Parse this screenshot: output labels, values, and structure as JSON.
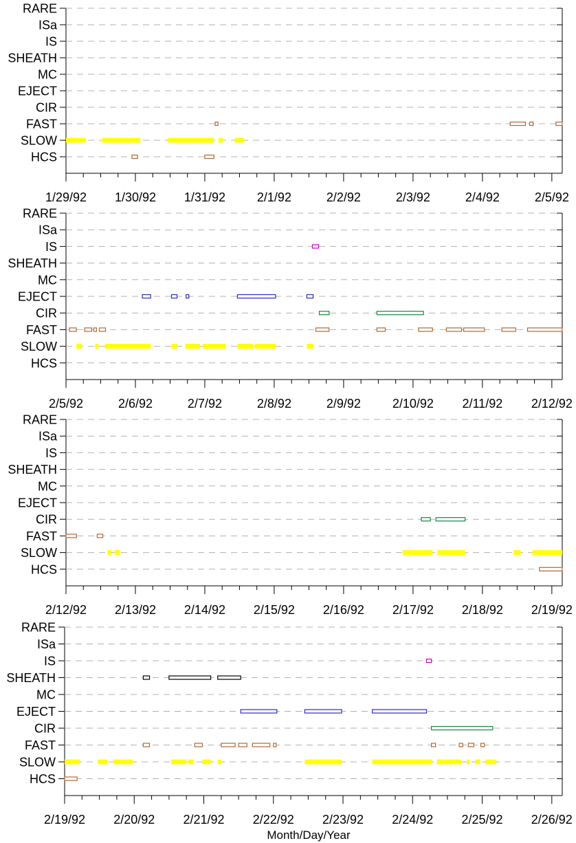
{
  "chart_data": {
    "type": "scatter",
    "xlabel": "Month/Day/Year",
    "categories": [
      "RARE",
      "ISa",
      "IS",
      "SHEATH",
      "MC",
      "EJECT",
      "CIR",
      "FAST",
      "SLOW",
      "HCS"
    ],
    "colors": {
      "SLOW": "#ffff00",
      "FAST": "#b4662e",
      "HCS": "#b4662e",
      "CIR": "#0f8a3c",
      "EJECT": "#2a2ac8",
      "IS": "#c800c8",
      "SHEATH": "#000000",
      "grid": "#b0b0b0"
    },
    "grid": true,
    "panels": [
      {
        "tick_labels": [
          "1/29/92",
          "1/30/92",
          "1/31/92",
          "2/1/92",
          "2/2/92",
          "2/3/92",
          "2/4/92",
          "2/5/92"
        ],
        "xlim_days": [
          0,
          7.15
        ],
        "series": {
          "SLOW": [
            [
              0,
              0.28
            ],
            [
              0.52,
              1.07
            ],
            [
              1.47,
              2.13
            ],
            [
              2.2,
              2.26
            ],
            [
              2.43,
              2.57
            ]
          ],
          "FAST": [
            [
              2.15,
              2.19
            ],
            [
              6.4,
              6.62
            ],
            [
              6.68,
              6.73
            ],
            [
              7.06,
              7.15
            ]
          ],
          "HCS": [
            [
              0.95,
              1.03
            ],
            [
              2.0,
              2.13
            ]
          ]
        }
      },
      {
        "tick_labels": [
          "2/5/92",
          "2/6/92",
          "2/7/92",
          "2/8/92",
          "2/9/92",
          "2/10/92",
          "2/11/92",
          "2/12/92"
        ],
        "xlim_days": [
          0,
          7.15
        ],
        "series": {
          "IS": [
            [
              3.55,
              3.64
            ]
          ],
          "EJECT": [
            [
              1.1,
              1.22
            ],
            [
              1.52,
              1.6
            ],
            [
              1.73,
              1.77
            ],
            [
              2.47,
              3.02
            ],
            [
              3.47,
              3.56
            ]
          ],
          "CIR": [
            [
              3.65,
              3.79
            ],
            [
              4.48,
              5.15
            ]
          ],
          "FAST": [
            [
              0.05,
              0.15
            ],
            [
              0.27,
              0.37
            ],
            [
              0.4,
              0.44
            ],
            [
              0.48,
              0.57
            ],
            [
              3.6,
              3.79
            ],
            [
              4.48,
              4.6
            ],
            [
              5.08,
              5.28
            ],
            [
              5.48,
              5.7
            ],
            [
              5.73,
              6.03
            ],
            [
              6.28,
              6.48
            ],
            [
              6.65,
              7.15
            ]
          ],
          "SLOW": [
            [
              0.15,
              0.23
            ],
            [
              0.42,
              0.47
            ],
            [
              0.56,
              1.22
            ],
            [
              1.52,
              1.6
            ],
            [
              1.72,
              1.93
            ],
            [
              1.97,
              2.3
            ],
            [
              2.47,
              2.7
            ],
            [
              2.72,
              3.02
            ],
            [
              3.47,
              3.56
            ]
          ]
        }
      },
      {
        "tick_labels": [
          "2/12/92",
          "2/13/92",
          "2/14/92",
          "2/15/92",
          "2/16/92",
          "2/17/92",
          "2/18/92",
          "2/19/92"
        ],
        "xlim_days": [
          0,
          7.15
        ],
        "series": {
          "CIR": [
            [
              5.12,
              5.25
            ],
            [
              5.33,
              5.75
            ]
          ],
          "FAST": [
            [
              0.0,
              0.15
            ],
            [
              0.45,
              0.53
            ]
          ],
          "SLOW": [
            [
              0.6,
              0.65
            ],
            [
              0.7,
              0.78
            ],
            [
              4.85,
              5.28
            ],
            [
              5.35,
              5.75
            ],
            [
              6.45,
              6.55
            ],
            [
              6.72,
              7.15
            ]
          ],
          "HCS": [
            [
              6.82,
              7.15
            ]
          ]
        }
      },
      {
        "tick_labels": [
          "2/19/92",
          "2/20/92",
          "2/21/92",
          "2/22/92",
          "2/23/92",
          "2/24/92",
          "2/25/92",
          "2/26/92"
        ],
        "xlim_days": [
          0,
          7.15
        ],
        "series": {
          "IS": [
            [
              5.2,
              5.27
            ]
          ],
          "SHEATH": [
            [
              1.13,
              1.22
            ],
            [
              1.5,
              2.1
            ],
            [
              2.2,
              2.53
            ]
          ],
          "EJECT": [
            [
              2.53,
              3.05
            ],
            [
              3.45,
              3.98
            ],
            [
              4.42,
              5.2
            ]
          ],
          "CIR": [
            [
              5.27,
              6.15
            ]
          ],
          "FAST": [
            [
              1.13,
              1.22
            ],
            [
              1.87,
              1.98
            ],
            [
              2.25,
              2.45
            ],
            [
              2.5,
              2.62
            ],
            [
              2.7,
              2.95
            ],
            [
              3.0,
              3.03
            ],
            [
              5.27,
              5.33
            ],
            [
              5.67,
              5.72
            ],
            [
              5.8,
              5.88
            ],
            [
              5.98,
              6.03
            ]
          ],
          "SLOW": [
            [
              0.0,
              0.22
            ],
            [
              0.48,
              0.62
            ],
            [
              0.7,
              0.98
            ],
            [
              1.53,
              1.75
            ],
            [
              1.78,
              1.85
            ],
            [
              1.98,
              2.1
            ],
            [
              2.2,
              2.25
            ],
            [
              3.45,
              3.98
            ],
            [
              4.42,
              5.28
            ],
            [
              5.35,
              5.7
            ],
            [
              5.78,
              5.82
            ],
            [
              5.9,
              5.97
            ],
            [
              6.05,
              6.2
            ]
          ],
          "HCS": [
            [
              0.0,
              0.18
            ]
          ]
        }
      }
    ]
  }
}
